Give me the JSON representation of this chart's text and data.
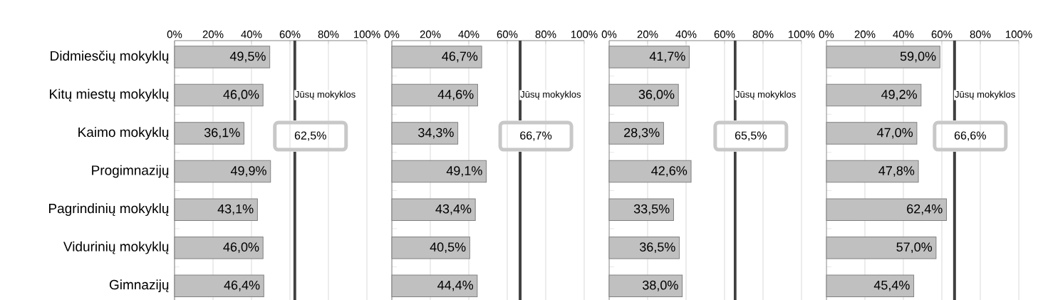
{
  "chart_data": [
    {
      "type": "bar",
      "orientation": "horizontal",
      "categories": [
        "Didmiesčių mokyklų",
        "Kitų miestų mokyklų",
        "Kaimo mokyklų",
        "Progimnazijų",
        "Pagrindinių mokyklų",
        "Vidurinių mokyklų",
        "Gimnazijų"
      ],
      "values": [
        49.5,
        46.0,
        36.1,
        49.9,
        43.1,
        46.0,
        46.4
      ],
      "value_labels": [
        "49,5%",
        "46,0%",
        "36,1%",
        "49,9%",
        "43,1%",
        "46,0%",
        "46,4%"
      ],
      "color": "#c0c0c0",
      "xlim": [
        0,
        100
      ],
      "xticks": [
        {
          "value": 0,
          "label": "0%"
        },
        {
          "value": 20,
          "label": "20%"
        },
        {
          "value": 40,
          "label": "40%"
        },
        {
          "value": 60,
          "label": "60%"
        },
        {
          "value": 80,
          "label": "80%"
        },
        {
          "value": 100,
          "label": "100%"
        }
      ],
      "grid": "x",
      "ref_lines": [
        {
          "axis": "x",
          "value": 62.5,
          "label": "Jūsų mokyklos",
          "color": "#404040"
        }
      ],
      "annotations": [
        "62,5%"
      ]
    },
    {
      "type": "bar",
      "orientation": "horizontal",
      "values": [
        46.7,
        44.6,
        34.3,
        49.1,
        43.4,
        40.5,
        44.4
      ],
      "value_labels": [
        "46,7%",
        "44,6%",
        "34,3%",
        "49,1%",
        "43,4%",
        "40,5%",
        "44,4%"
      ],
      "color": "#c0c0c0",
      "xlim": [
        0,
        100
      ],
      "xticks": [
        {
          "value": 0,
          "label": "0%"
        },
        {
          "value": 20,
          "label": "20%"
        },
        {
          "value": 40,
          "label": "40%"
        },
        {
          "value": 60,
          "label": "60%"
        },
        {
          "value": 80,
          "label": "80%"
        },
        {
          "value": 100,
          "label": "100%"
        }
      ],
      "grid": "x",
      "tick_labels": "x",
      "ref_lines": [
        {
          "axis": "x",
          "value": 66.7,
          "label": "Jūsų mokyklos",
          "color": "#404040"
        }
      ],
      "annotations": [
        "66,7%"
      ]
    },
    {
      "type": "bar",
      "orientation": "horizontal",
      "values": [
        41.7,
        36.0,
        28.3,
        42.6,
        33.5,
        36.5,
        38.0
      ],
      "value_labels": [
        "41,7%",
        "36,0%",
        "28,3%",
        "42,6%",
        "33,5%",
        "36,5%",
        "38,0%"
      ],
      "color": "#c0c0c0",
      "xlim": [
        0,
        100
      ],
      "xticks": [
        {
          "value": 0,
          "label": "0%"
        },
        {
          "value": 20,
          "label": "20%"
        },
        {
          "value": 40,
          "label": "40%"
        },
        {
          "value": 60,
          "label": "60%"
        },
        {
          "value": 80,
          "label": "80%"
        },
        {
          "value": 100,
          "label": "100%"
        }
      ],
      "grid": "x",
      "tick_labels": "x",
      "ref_lines": [
        {
          "axis": "x",
          "value": 65.5,
          "label": "Jūsų mokyklos",
          "color": "#404040"
        }
      ],
      "annotations": [
        "65,5%"
      ]
    },
    {
      "type": "bar",
      "orientation": "horizontal",
      "values": [
        59.0,
        49.2,
        47.0,
        47.8,
        62.4,
        57.0,
        45.4
      ],
      "value_labels": [
        "59,0%",
        "49,2%",
        "47,0%",
        "47,8%",
        "62,4%",
        "57,0%",
        "45,4%"
      ],
      "color": "#c0c0c0",
      "xlim": [
        0,
        100
      ],
      "xticks": [
        {
          "value": 0,
          "label": "0%"
        },
        {
          "value": 20,
          "label": "20%"
        },
        {
          "value": 40,
          "label": "40%"
        },
        {
          "value": 60,
          "label": "60%"
        },
        {
          "value": 80,
          "label": "80%"
        },
        {
          "value": 100,
          "label": "100%"
        }
      ],
      "grid": "x",
      "tick_labels": "x",
      "ref_lines": [
        {
          "axis": "x",
          "value": 66.6,
          "label": "Jūsų mokyklos",
          "color": "#404040"
        }
      ],
      "annotations": [
        "66,6%"
      ]
    }
  ]
}
